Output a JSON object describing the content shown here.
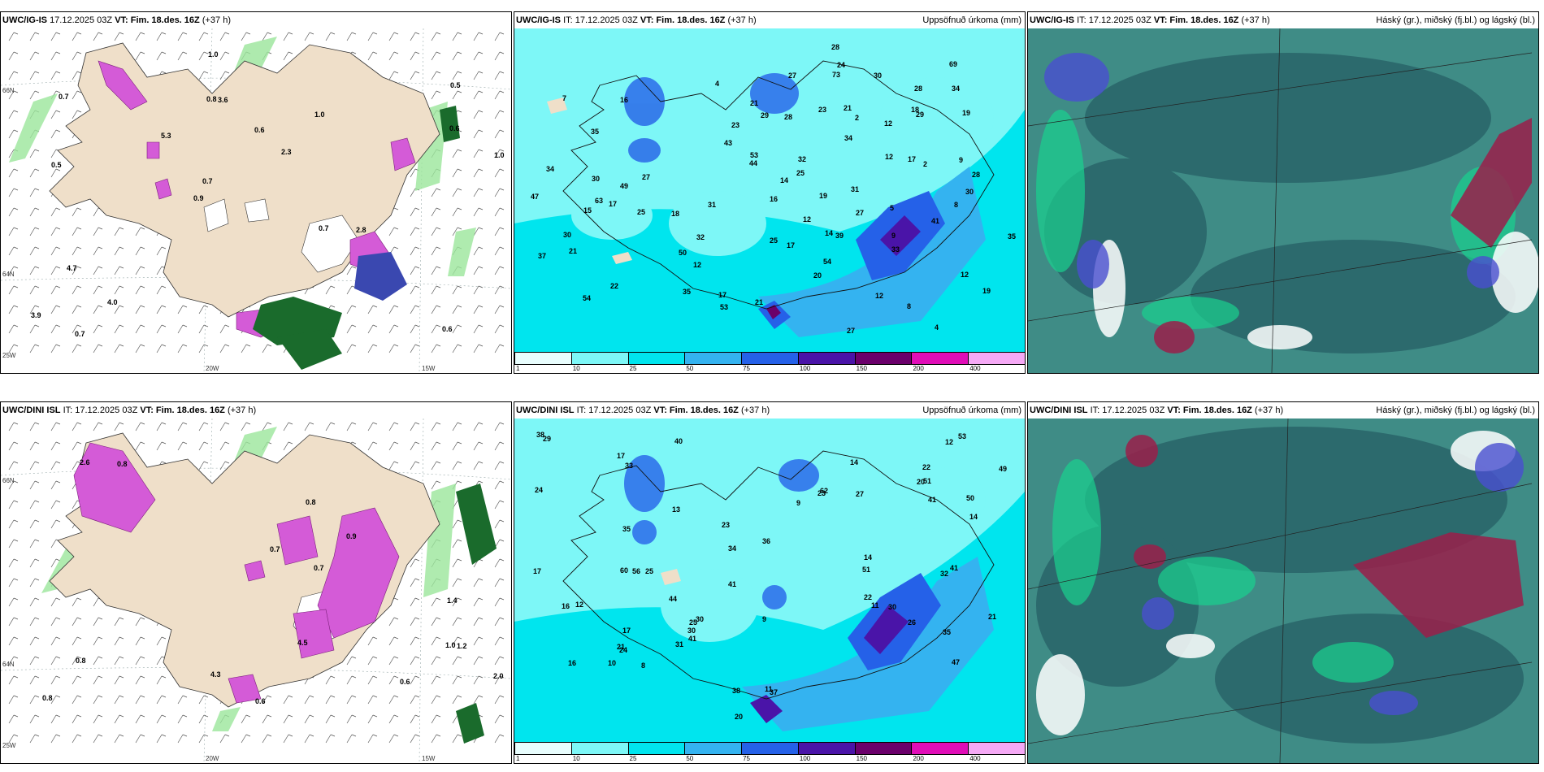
{
  "panels": [
    {
      "id": "p1",
      "model": "UWC/IG-IS",
      "header_rest": "17.12.2025 03Z",
      "vt_label": "VT:",
      "vt": "Fim. 18.des. 16Z",
      "lead": "(+37",
      "lead2": "h)",
      "right": "",
      "axes": {
        "lat_top": "66N",
        "lat_mid": "64N",
        "lat_bot": "25W",
        "lon_left": "20W",
        "lon_right": "15W"
      },
      "values": [
        "0.6",
        "0.5",
        "0.5",
        "0.9",
        "1.0",
        "0.7",
        "0.8",
        "0.6",
        "4.7",
        "5.3",
        "3.9",
        "4.0",
        "3.6",
        "2.3",
        "2.8",
        "0.7",
        "1.0",
        "1.0",
        "0.7",
        "0.6",
        "0.7"
      ]
    },
    {
      "id": "p2",
      "model": "UWC/IG-IS",
      "header_rest": "IT: 17.12.2025 03Z",
      "vt_label": "VT:",
      "vt": "Fim. 18.des. 16Z",
      "lead": "(+37 h)",
      "lead2": "",
      "right": "Uppsöfnuð úrkoma (mm)",
      "values": [
        "4",
        "17",
        "14",
        "7",
        "12",
        "35",
        "22",
        "18",
        "12",
        "29",
        "2",
        "8",
        "12",
        "4",
        "19",
        "21",
        "5",
        "14",
        "34",
        "54",
        "69",
        "28",
        "17",
        "35",
        "30",
        "30",
        "25",
        "16",
        "44",
        "34",
        "39",
        "15",
        "50",
        "21",
        "23",
        "41",
        "8",
        "12",
        "28",
        "27",
        "32",
        "17",
        "35",
        "28",
        "31",
        "49",
        "19",
        "24",
        "23",
        "25",
        "27",
        "9",
        "9",
        "2",
        "43",
        "47",
        "53",
        "53",
        "12",
        "12",
        "17",
        "18",
        "16",
        "27",
        "37",
        "30",
        "27",
        "25",
        "30",
        "29",
        "33",
        "21",
        "20",
        "19",
        "34",
        "28",
        "21",
        "54",
        "63",
        "73",
        "31",
        "32"
      ],
      "legend": [
        "1",
        "10",
        "25",
        "50",
        "75",
        "100",
        "150",
        "200",
        "400"
      ]
    },
    {
      "id": "p3",
      "model": "UWC/IG-IS",
      "header_rest": "IT: 17.12.2025 03Z",
      "vt_label": "VT:",
      "vt": "Fim. 18.des. 16Z",
      "lead": "(+37 h)",
      "lead2": "",
      "right": "Háský (gr.), miðský (fj.bl.) og lágský (bl.)"
    },
    {
      "id": "p4",
      "model": "UWC/DINI ISL",
      "header_rest": "IT: 17.12.2025 03Z",
      "vt_label": "VT:",
      "vt": "Fim. 18.des. 16Z",
      "lead": "(+37 h)",
      "lead2": "",
      "right": "",
      "axes": {
        "lat_top": "66N",
        "lat_mid": "64N",
        "lat_bot": "25W",
        "lon_left": "20W",
        "lon_right": "15W"
      },
      "values": [
        "0.8",
        "0.7",
        "1.0",
        "2.0",
        "0.8",
        "0.6",
        "0.7",
        "0.9",
        "1.2",
        "0.8",
        "0.8",
        "4.5",
        "1.4",
        "0.6",
        "2.6",
        "4.3"
      ]
    },
    {
      "id": "p5",
      "model": "UWC/DINI ISL",
      "header_rest": "IT: 17.12.2025 03Z",
      "vt_label": "VT:",
      "vt": "Fim. 18.des. 16Z",
      "lead": "(+37 h)",
      "lead2": "",
      "right": "Uppsöfnuð úrkoma (mm)",
      "values": [
        "16",
        "11",
        "62",
        "51",
        "47",
        "20",
        "40",
        "9",
        "9",
        "8",
        "32",
        "24",
        "22",
        "25",
        "29",
        "23",
        "25",
        "34",
        "31",
        "14",
        "27",
        "35",
        "14",
        "10",
        "41",
        "50",
        "60",
        "44",
        "53",
        "12",
        "51",
        "49",
        "56",
        "30",
        "37",
        "41",
        "35",
        "26",
        "38",
        "22",
        "21",
        "17",
        "17",
        "17",
        "36",
        "38",
        "23",
        "14",
        "11",
        "13",
        "16",
        "21",
        "20",
        "24",
        "30",
        "30",
        "41",
        "33",
        "41",
        "12"
      ],
      "legend": [
        "1",
        "10",
        "25",
        "50",
        "75",
        "100",
        "150",
        "200",
        "400"
      ]
    },
    {
      "id": "p6",
      "model": "UWC/DINI ISL",
      "header_rest": "IT: 17.12.2025 03Z",
      "vt_label": "VT:",
      "vt": "Fim. 18.des. 16Z",
      "lead": "(+37 h)",
      "lead2": "",
      "right": "Háský (gr.), miðský (fj.bl.) og lágský (bl.)"
    }
  ],
  "colors": {
    "land": "#efdfc9",
    "precip_light": "#7df7f7",
    "precip_cyan": "#00e5ee",
    "precip_mid": "#34b3f0",
    "precip_blue": "#2561e8",
    "precip_dark": "#4a14a8",
    "precip_purple": "#6b006b",
    "precip_magenta": "#e00db7",
    "precip_pink": "#f5a9f5",
    "cloud_dark": "#2c6a6d",
    "cloud_mid": "#3f8c86",
    "cloud_green": "#1ad18f",
    "cloud_red": "#9a1e4a",
    "cloud_blue": "#4a4fcf",
    "snow_pink": "#d45bd7",
    "snow_green": "#1a6b2c"
  }
}
